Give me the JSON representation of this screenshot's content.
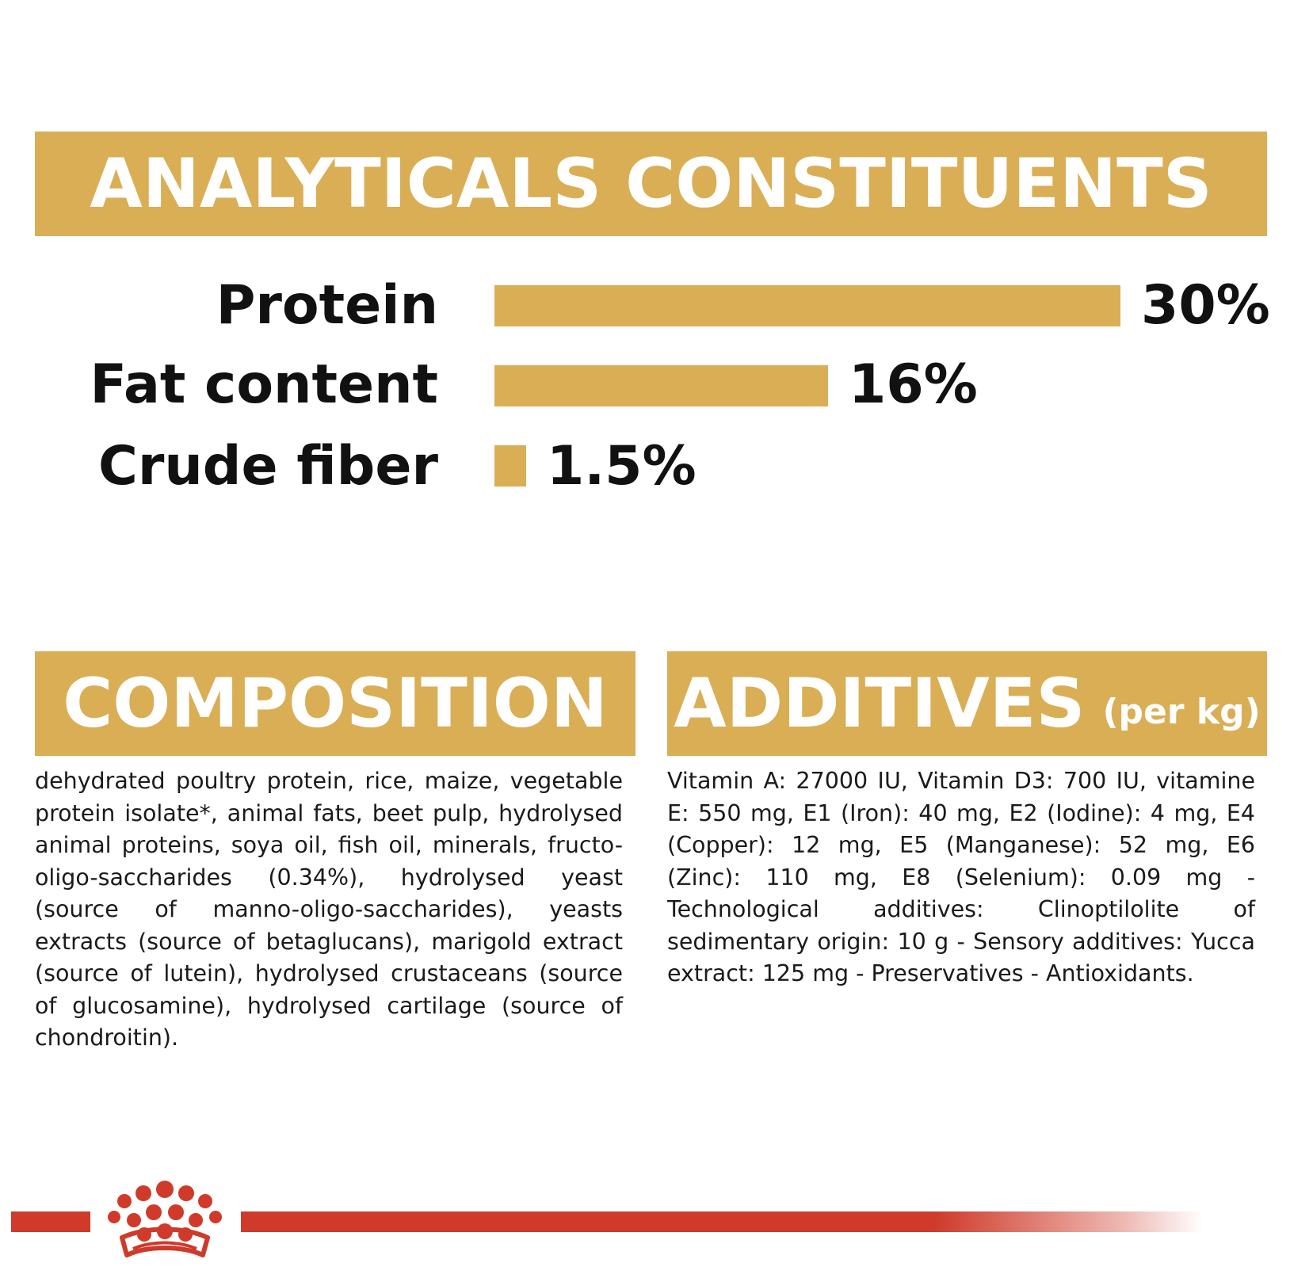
{
  "analytical": {
    "title": "ANALYTICALS CONSTITUENTS",
    "rows": [
      {
        "label": "Protein",
        "value": "30%",
        "percent": 30
      },
      {
        "label": "Fat content",
        "value": "16%",
        "percent": 16
      },
      {
        "label": "Crude fiber",
        "value": "1.5%",
        "percent": 1.5
      }
    ]
  },
  "composition": {
    "title": "COMPOSITION",
    "text": "dehydrated poultry protein, rice, maize, vegetable protein isolate*, animal fats, beet pulp, hydrolysed animal proteins, soya oil, fish oil, minerals, fructo-oligo-saccharides (0.34%), hydrolysed yeast (source of manno-oligo-saccharides), yeasts extracts (source of betaglucans), marigold extract (source of lutein), hydrolysed crustaceans (source of glucosamine), hydrolysed cartilage (source of chondroitin)."
  },
  "additives": {
    "title": "ADDITIVES",
    "title_suffix": "(per kg)",
    "text": "Vitamin A: 27000 IU, Vitamin D3: 700 IU, vitamine E: 550 mg, E1 (Iron): 40 mg, E2 (Iodine): 4 mg, E4 (Copper): 12 mg, E5 (Manganese): 52 mg, E6 (Zinc): 110 mg, E8 (Selenium): 0.09 mg - Technological additives: Clinoptilolite of sedimentary origin: 10 g - Sensory additives: Yucca extract: 125 mg - Preservatives - Antioxidants."
  },
  "colors": {
    "accent_gold": "#d9ae55",
    "brand_red": "#cf3a2a",
    "text": "#111111"
  },
  "footer": {
    "logo_icon": "royal-canin-crown-icon"
  }
}
